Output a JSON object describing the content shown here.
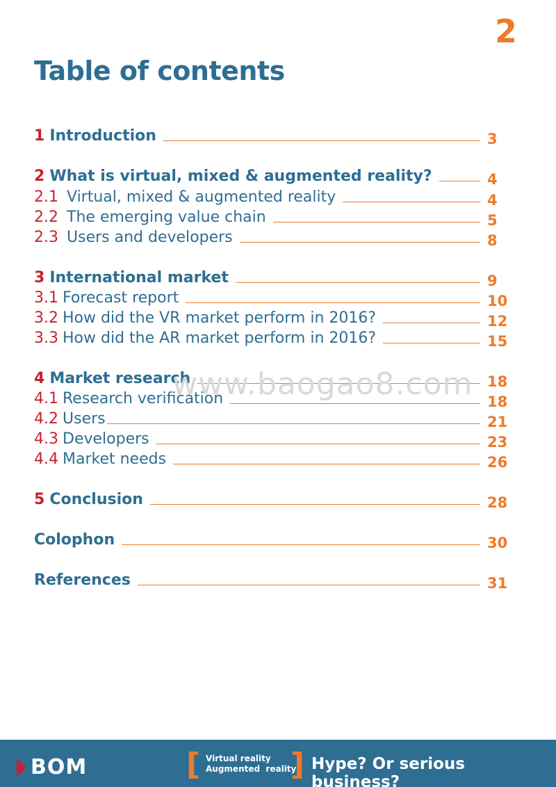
{
  "page_number": "2",
  "title": "Table of contents",
  "toc": [
    {
      "num": "1",
      "label": "Introduction",
      "page": "3",
      "level": "chapter"
    },
    {
      "num": "2",
      "label": "What is virtual, mixed & augmented reality?",
      "page": "4",
      "level": "chapter"
    },
    {
      "num": "2.1",
      "label": "Virtual, mixed & augmented reality",
      "page": "4",
      "level": "sub"
    },
    {
      "num": "2.2",
      "label": "The emerging value chain",
      "page": "5",
      "level": "sub"
    },
    {
      "num": "2.3",
      "label": "Users and developers",
      "page": "8",
      "level": "sub"
    },
    {
      "num": "3",
      "label": "International market",
      "page": "9",
      "level": "chapter"
    },
    {
      "num": "3.1",
      "label": "Forecast report",
      "page": "10",
      "level": "sub"
    },
    {
      "num": "3.2",
      "label": "How did the VR market perform in 2016?",
      "page": "12",
      "level": "sub"
    },
    {
      "num": "3.3",
      "label": "How did the AR market perform in 2016?",
      "page": "15",
      "level": "sub"
    },
    {
      "num": "4",
      "label": "Market research",
      "page": "18",
      "level": "chapter"
    },
    {
      "num": "4.1",
      "label": "Research verification",
      "page": "18",
      "level": "sub"
    },
    {
      "num": "4.2",
      "label": "Users",
      "page": "21",
      "level": "sub"
    },
    {
      "num": "4.3",
      "label": "Developers",
      "page": "23",
      "level": "sub"
    },
    {
      "num": "4.4",
      "label": "Market needs",
      "page": "26",
      "level": "sub"
    },
    {
      "num": "5",
      "label": "Conclusion",
      "page": "28",
      "level": "chapter"
    },
    {
      "num": "",
      "label": "Colophon",
      "page": "30",
      "level": "chapter"
    },
    {
      "num": "",
      "label": "References",
      "page": "31",
      "level": "chapter"
    }
  ],
  "watermark": "www.baogao8.com",
  "footer": {
    "logo": "BOM",
    "bracket_open": "[",
    "bracket_close": "]",
    "tag_line_1": "Virtual reality",
    "tag_line_2": "Augmented  reality",
    "tagline": "Hype? Or serious business?"
  },
  "colors": {
    "primary_blue": "#2e6e92",
    "accent_orange": "#ee7b2a",
    "accent_red": "#c8202f"
  }
}
